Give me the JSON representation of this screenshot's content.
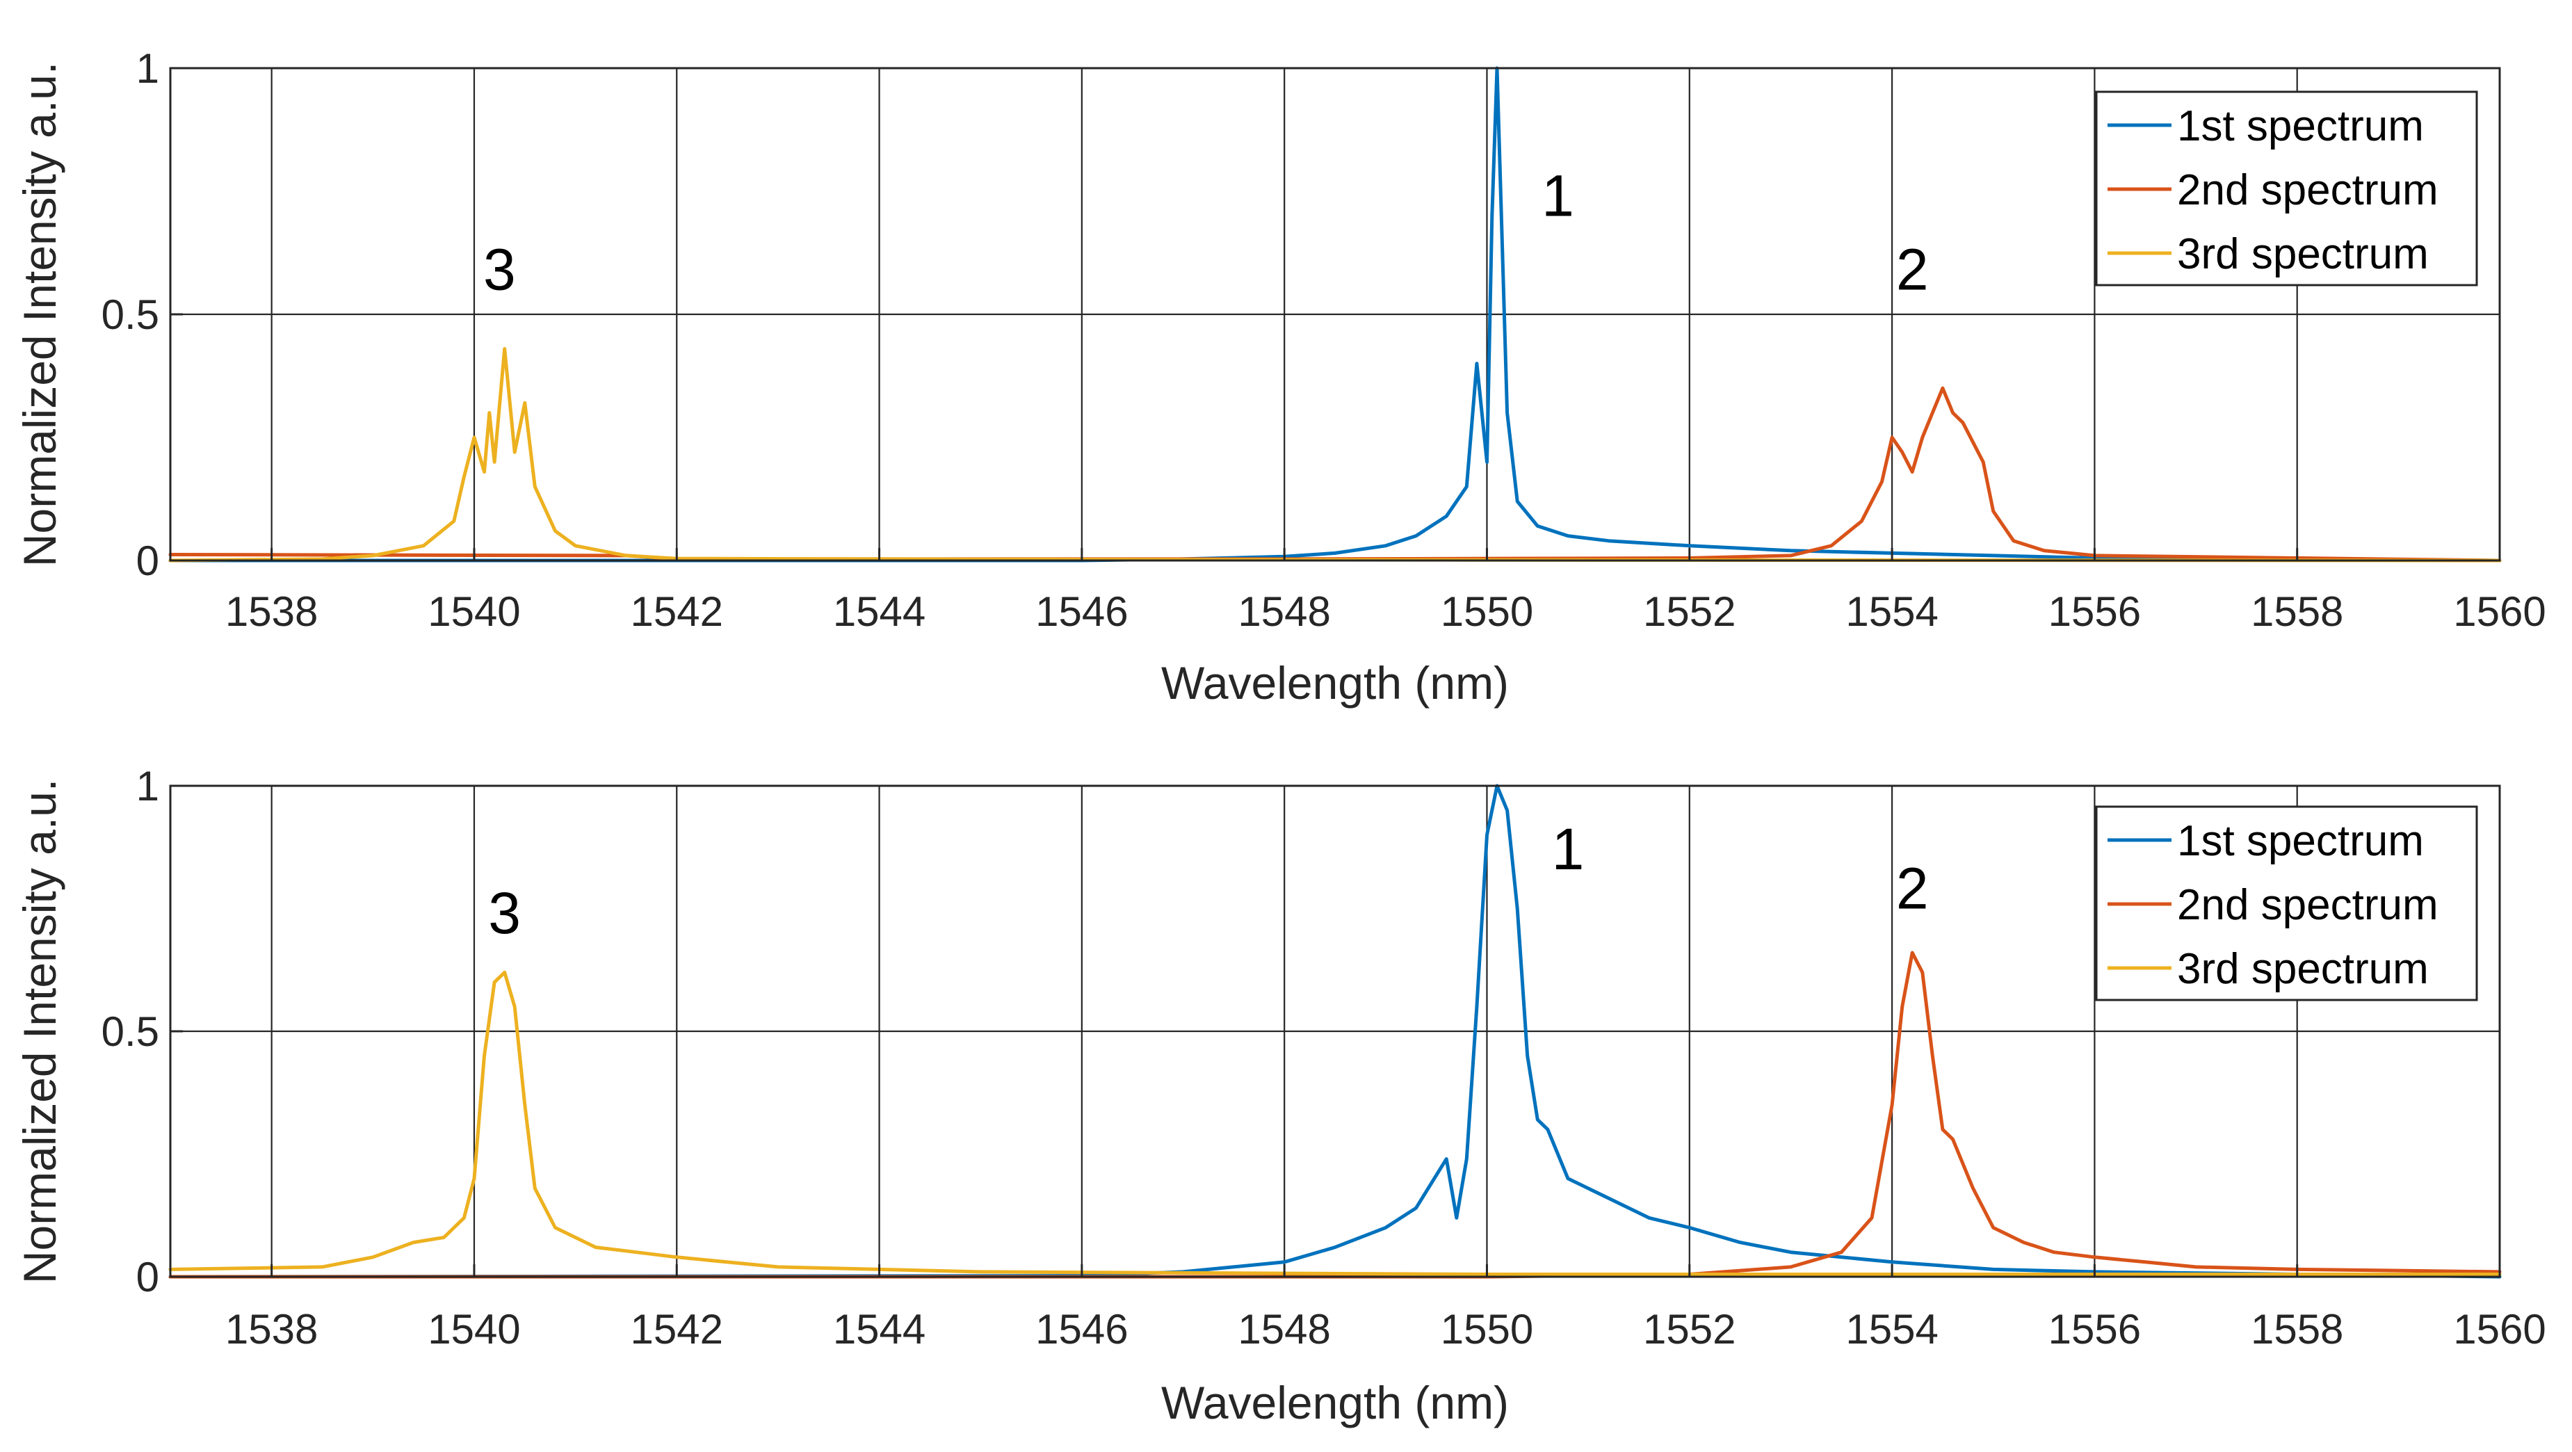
{
  "chart_data": [
    {
      "type": "line",
      "panel": "top",
      "title": "",
      "xlabel": "Wavelength (nm)",
      "ylabel": "Normalized Intensity a.u.",
      "xlim": [
        1537,
        1560
      ],
      "ylim": [
        0,
        1
      ],
      "grid": true,
      "legend_position": "top-right",
      "x_ticks": [
        1538,
        1540,
        1542,
        1544,
        1546,
        1548,
        1550,
        1552,
        1554,
        1556,
        1558,
        1560
      ],
      "x_tick_labels": [
        "1538",
        "1540",
        "1542",
        "1544",
        "1546",
        "1548",
        "1550",
        "1552",
        "1554",
        "1556",
        "1558",
        "1560"
      ],
      "y_ticks": [
        0,
        0.5,
        1
      ],
      "y_tick_labels": [
        "0",
        "0.5",
        "1"
      ],
      "series": [
        {
          "name": "1st spectrum",
          "color": "#0072BD",
          "x": [
            1537,
            1546,
            1547,
            1548,
            1548.5,
            1549,
            1549.3,
            1549.6,
            1549.8,
            1549.9,
            1550.0,
            1550.05,
            1550.1,
            1550.15,
            1550.2,
            1550.3,
            1550.5,
            1550.8,
            1551.2,
            1552,
            1553,
            1554,
            1555,
            1556,
            1560
          ],
          "values": [
            0.0,
            0.0,
            0.003,
            0.008,
            0.015,
            0.03,
            0.05,
            0.09,
            0.15,
            0.4,
            0.2,
            0.7,
            1.0,
            0.65,
            0.3,
            0.12,
            0.07,
            0.05,
            0.04,
            0.03,
            0.02,
            0.015,
            0.01,
            0.005,
            0.0
          ]
        },
        {
          "name": "2nd spectrum",
          "color": "#D95319",
          "x": [
            1537,
            1541.5,
            1542,
            1548,
            1552,
            1553,
            1553.4,
            1553.7,
            1553.9,
            1554.0,
            1554.1,
            1554.2,
            1554.3,
            1554.4,
            1554.5,
            1554.6,
            1554.7,
            1554.8,
            1554.9,
            1555.0,
            1555.2,
            1555.5,
            1556,
            1560
          ],
          "values": [
            0.012,
            0.01,
            0.003,
            0.003,
            0.005,
            0.01,
            0.03,
            0.08,
            0.16,
            0.25,
            0.22,
            0.18,
            0.25,
            0.3,
            0.35,
            0.3,
            0.28,
            0.24,
            0.2,
            0.1,
            0.04,
            0.02,
            0.01,
            0.0
          ]
        },
        {
          "name": "3rd spectrum",
          "color": "#EDB120",
          "x": [
            1537,
            1538.5,
            1539,
            1539.5,
            1539.8,
            1539.9,
            1540.0,
            1540.1,
            1540.15,
            1540.2,
            1540.3,
            1540.4,
            1540.5,
            1540.6,
            1540.8,
            1541.0,
            1541.5,
            1542,
            1546,
            1550,
            1560
          ],
          "values": [
            0.0,
            0.003,
            0.01,
            0.03,
            0.08,
            0.17,
            0.25,
            0.18,
            0.3,
            0.2,
            0.43,
            0.22,
            0.32,
            0.15,
            0.06,
            0.03,
            0.01,
            0.004,
            0.002,
            0.001,
            0.0
          ]
        }
      ],
      "annotations": [
        {
          "text": "1",
          "x": 1550.7,
          "y": 0.7
        },
        {
          "text": "2",
          "x": 1554.2,
          "y": 0.55
        },
        {
          "text": "3",
          "x": 1540.25,
          "y": 0.55
        }
      ]
    },
    {
      "type": "line",
      "panel": "bottom",
      "title": "",
      "xlabel": "Wavelength (nm)",
      "ylabel": "Normalized Intensity a.u.",
      "xlim": [
        1537,
        1560
      ],
      "ylim": [
        0,
        1
      ],
      "grid": true,
      "legend_position": "top-right",
      "x_ticks": [
        1538,
        1540,
        1542,
        1544,
        1546,
        1548,
        1550,
        1552,
        1554,
        1556,
        1558,
        1560
      ],
      "x_tick_labels": [
        "1538",
        "1540",
        "1542",
        "1544",
        "1546",
        "1548",
        "1550",
        "1552",
        "1554",
        "1556",
        "1558",
        "1560"
      ],
      "y_ticks": [
        0,
        0.5,
        1
      ],
      "y_tick_labels": [
        "0",
        "0.5",
        "1"
      ],
      "series": [
        {
          "name": "1st spectrum",
          "color": "#0072BD",
          "x": [
            1537,
            1546,
            1547,
            1548,
            1548.5,
            1549,
            1549.3,
            1549.6,
            1549.7,
            1549.8,
            1549.9,
            1550.0,
            1550.1,
            1550.2,
            1550.3,
            1550.4,
            1550.5,
            1550.6,
            1550.8,
            1551.2,
            1551.6,
            1552,
            1552.5,
            1553,
            1554,
            1555,
            1556,
            1560
          ],
          "values": [
            0.0,
            0.002,
            0.01,
            0.03,
            0.06,
            0.1,
            0.14,
            0.24,
            0.12,
            0.24,
            0.55,
            0.9,
            1.0,
            0.95,
            0.75,
            0.45,
            0.32,
            0.3,
            0.2,
            0.16,
            0.12,
            0.1,
            0.07,
            0.05,
            0.03,
            0.015,
            0.01,
            0.0
          ]
        },
        {
          "name": "2nd spectrum",
          "color": "#D95319",
          "x": [
            1537,
            1550,
            1552,
            1553,
            1553.5,
            1553.8,
            1554.0,
            1554.1,
            1554.2,
            1554.3,
            1554.4,
            1554.5,
            1554.6,
            1554.8,
            1555.0,
            1555.3,
            1555.6,
            1556,
            1556.5,
            1557,
            1558,
            1560
          ],
          "values": [
            0.0,
            0.0,
            0.005,
            0.02,
            0.05,
            0.12,
            0.35,
            0.55,
            0.66,
            0.62,
            0.45,
            0.3,
            0.28,
            0.18,
            0.1,
            0.07,
            0.05,
            0.04,
            0.03,
            0.02,
            0.015,
            0.01
          ]
        },
        {
          "name": "3rd spectrum",
          "color": "#EDB120",
          "x": [
            1537,
            1538.5,
            1539,
            1539.4,
            1539.7,
            1539.9,
            1540.0,
            1540.1,
            1540.2,
            1540.3,
            1540.4,
            1540.5,
            1540.6,
            1540.8,
            1541.2,
            1541.6,
            1542,
            1543,
            1545,
            1550,
            1560
          ],
          "values": [
            0.015,
            0.02,
            0.04,
            0.07,
            0.08,
            0.12,
            0.2,
            0.45,
            0.6,
            0.62,
            0.55,
            0.35,
            0.18,
            0.1,
            0.06,
            0.05,
            0.04,
            0.02,
            0.01,
            0.005,
            0.005
          ]
        }
      ],
      "annotations": [
        {
          "text": "1",
          "x": 1550.8,
          "y": 0.83
        },
        {
          "text": "2",
          "x": 1554.2,
          "y": 0.75
        },
        {
          "text": "3",
          "x": 1540.3,
          "y": 0.7
        }
      ]
    }
  ]
}
